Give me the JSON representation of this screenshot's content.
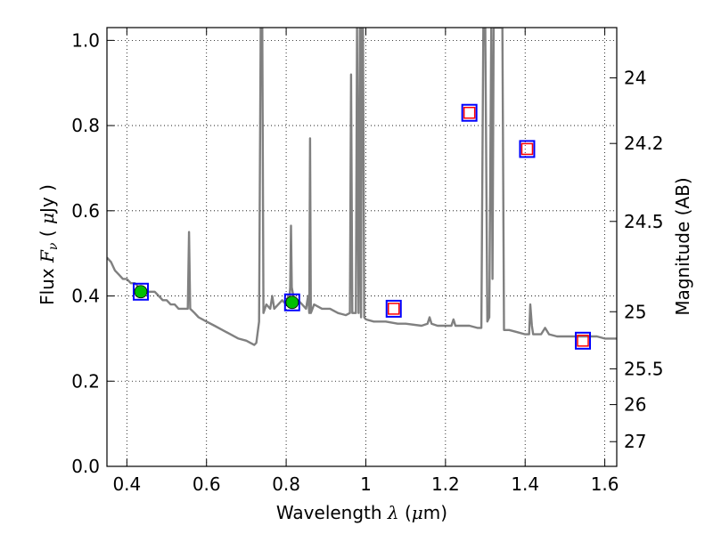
{
  "chart_data": {
    "type": "line",
    "title": "",
    "xlabel": "Wavelength  λ (μm)",
    "ylabel": "Flux  Fν ( μJy )",
    "y2label": "Magnitude (AB)",
    "xlim": [
      0.35,
      1.63
    ],
    "ylim": [
      0.0,
      1.03
    ],
    "grid": true,
    "x_ticks": [
      {
        "value": 0.4,
        "label": "0.4"
      },
      {
        "value": 0.6,
        "label": "0.6"
      },
      {
        "value": 0.8,
        "label": "0.8"
      },
      {
        "value": 1.0,
        "label": "1"
      },
      {
        "value": 1.2,
        "label": "1.2"
      },
      {
        "value": 1.4,
        "label": "1.4"
      },
      {
        "value": 1.6,
        "label": "1.6"
      }
    ],
    "y_ticks": [
      {
        "value": 0.0,
        "label": "0.0"
      },
      {
        "value": 0.2,
        "label": "0.2"
      },
      {
        "value": 0.4,
        "label": "0.4"
      },
      {
        "value": 0.6,
        "label": "0.6"
      },
      {
        "value": 0.8,
        "label": "0.8"
      },
      {
        "value": 1.0,
        "label": "1.0"
      }
    ],
    "y2_ticks": [
      {
        "flux": 0.912,
        "label": "24"
      },
      {
        "flux": 0.758,
        "label": "24.2"
      },
      {
        "flux": 0.575,
        "label": "24.5"
      },
      {
        "flux": 0.363,
        "label": "25"
      },
      {
        "flux": 0.229,
        "label": "25.5"
      },
      {
        "flux": 0.145,
        "label": "26"
      },
      {
        "flux": 0.058,
        "label": "27"
      }
    ],
    "series": [
      {
        "type": "line",
        "color": "#808080",
        "points": [
          [
            0.35,
            0.49
          ],
          [
            0.36,
            0.48
          ],
          [
            0.37,
            0.46
          ],
          [
            0.38,
            0.45
          ],
          [
            0.39,
            0.44
          ],
          [
            0.4,
            0.44
          ],
          [
            0.41,
            0.43
          ],
          [
            0.42,
            0.43
          ],
          [
            0.43,
            0.42
          ],
          [
            0.44,
            0.42
          ],
          [
            0.45,
            0.41
          ],
          [
            0.46,
            0.41
          ],
          [
            0.47,
            0.41
          ],
          [
            0.48,
            0.4
          ],
          [
            0.49,
            0.39
          ],
          [
            0.5,
            0.39
          ],
          [
            0.51,
            0.38
          ],
          [
            0.52,
            0.38
          ],
          [
            0.53,
            0.37
          ],
          [
            0.54,
            0.37
          ],
          [
            0.55,
            0.37
          ],
          [
            0.553,
            0.37
          ],
          [
            0.556,
            0.55
          ],
          [
            0.559,
            0.37
          ],
          [
            0.57,
            0.36
          ],
          [
            0.58,
            0.35
          ],
          [
            0.6,
            0.34
          ],
          [
            0.62,
            0.33
          ],
          [
            0.64,
            0.32
          ],
          [
            0.66,
            0.31
          ],
          [
            0.68,
            0.3
          ],
          [
            0.7,
            0.295
          ],
          [
            0.72,
            0.285
          ],
          [
            0.725,
            0.29
          ],
          [
            0.732,
            0.34
          ],
          [
            0.736,
            1.03
          ],
          [
            0.74,
            1.03
          ],
          [
            0.743,
            0.36
          ],
          [
            0.75,
            0.38
          ],
          [
            0.76,
            0.37
          ],
          [
            0.765,
            0.4
          ],
          [
            0.77,
            0.37
          ],
          [
            0.78,
            0.38
          ],
          [
            0.79,
            0.39
          ],
          [
            0.8,
            0.38
          ],
          [
            0.805,
            0.4
          ],
          [
            0.808,
            0.39
          ],
          [
            0.81,
            0.42
          ],
          [
            0.812,
            0.565
          ],
          [
            0.814,
            0.42
          ],
          [
            0.82,
            0.39
          ],
          [
            0.83,
            0.39
          ],
          [
            0.84,
            0.38
          ],
          [
            0.85,
            0.37
          ],
          [
            0.855,
            0.4
          ],
          [
            0.858,
            0.36
          ],
          [
            0.86,
            0.77
          ],
          [
            0.862,
            0.36
          ],
          [
            0.87,
            0.38
          ],
          [
            0.89,
            0.37
          ],
          [
            0.91,
            0.37
          ],
          [
            0.93,
            0.36
          ],
          [
            0.95,
            0.355
          ],
          [
            0.96,
            0.36
          ],
          [
            0.963,
            0.92
          ],
          [
            0.966,
            0.36
          ],
          [
            0.975,
            0.36
          ],
          [
            0.978,
            1.03
          ],
          [
            0.982,
            0.36
          ],
          [
            0.985,
            1.03
          ],
          [
            0.988,
            0.35
          ],
          [
            0.99,
            1.03
          ],
          [
            0.993,
            1.03
          ],
          [
            0.996,
            0.35
          ],
          [
            1.0,
            0.345
          ],
          [
            1.02,
            0.34
          ],
          [
            1.05,
            0.34
          ],
          [
            1.08,
            0.335
          ],
          [
            1.1,
            0.335
          ],
          [
            1.14,
            0.33
          ],
          [
            1.155,
            0.335
          ],
          [
            1.16,
            0.35
          ],
          [
            1.165,
            0.335
          ],
          [
            1.18,
            0.33
          ],
          [
            1.2,
            0.33
          ],
          [
            1.215,
            0.33
          ],
          [
            1.22,
            0.345
          ],
          [
            1.225,
            0.33
          ],
          [
            1.24,
            0.33
          ],
          [
            1.26,
            0.33
          ],
          [
            1.28,
            0.325
          ],
          [
            1.29,
            0.325
          ],
          [
            1.295,
            1.03
          ],
          [
            1.3,
            1.03
          ],
          [
            1.305,
            0.34
          ],
          [
            1.31,
            0.35
          ],
          [
            1.315,
            1.03
          ],
          [
            1.318,
            0.44
          ],
          [
            1.321,
            1.03
          ],
          [
            1.33,
            1.03
          ],
          [
            1.343,
            1.03
          ],
          [
            1.347,
            0.32
          ],
          [
            1.36,
            0.32
          ],
          [
            1.38,
            0.315
          ],
          [
            1.4,
            0.31
          ],
          [
            1.41,
            0.31
          ],
          [
            1.413,
            0.38
          ],
          [
            1.417,
            0.33
          ],
          [
            1.42,
            0.31
          ],
          [
            1.44,
            0.31
          ],
          [
            1.45,
            0.325
          ],
          [
            1.46,
            0.31
          ],
          [
            1.48,
            0.305
          ],
          [
            1.5,
            0.305
          ],
          [
            1.52,
            0.305
          ],
          [
            1.55,
            0.305
          ],
          [
            1.58,
            0.305
          ],
          [
            1.6,
            0.3
          ],
          [
            1.63,
            0.3
          ]
        ]
      },
      {
        "type": "scatter",
        "marker": "filled-circle-in-square",
        "face_color": "#00c000",
        "edge_color": "#0000ff",
        "points": [
          [
            0.435,
            0.41
          ],
          [
            0.815,
            0.385
          ]
        ]
      },
      {
        "type": "scatter",
        "marker": "open-square-in-square",
        "face_color": "#ff0000",
        "edge_color": "#0000ff",
        "points": [
          [
            1.07,
            0.37
          ],
          [
            1.26,
            0.83
          ],
          [
            1.405,
            0.745
          ],
          [
            1.545,
            0.295
          ]
        ]
      }
    ]
  }
}
